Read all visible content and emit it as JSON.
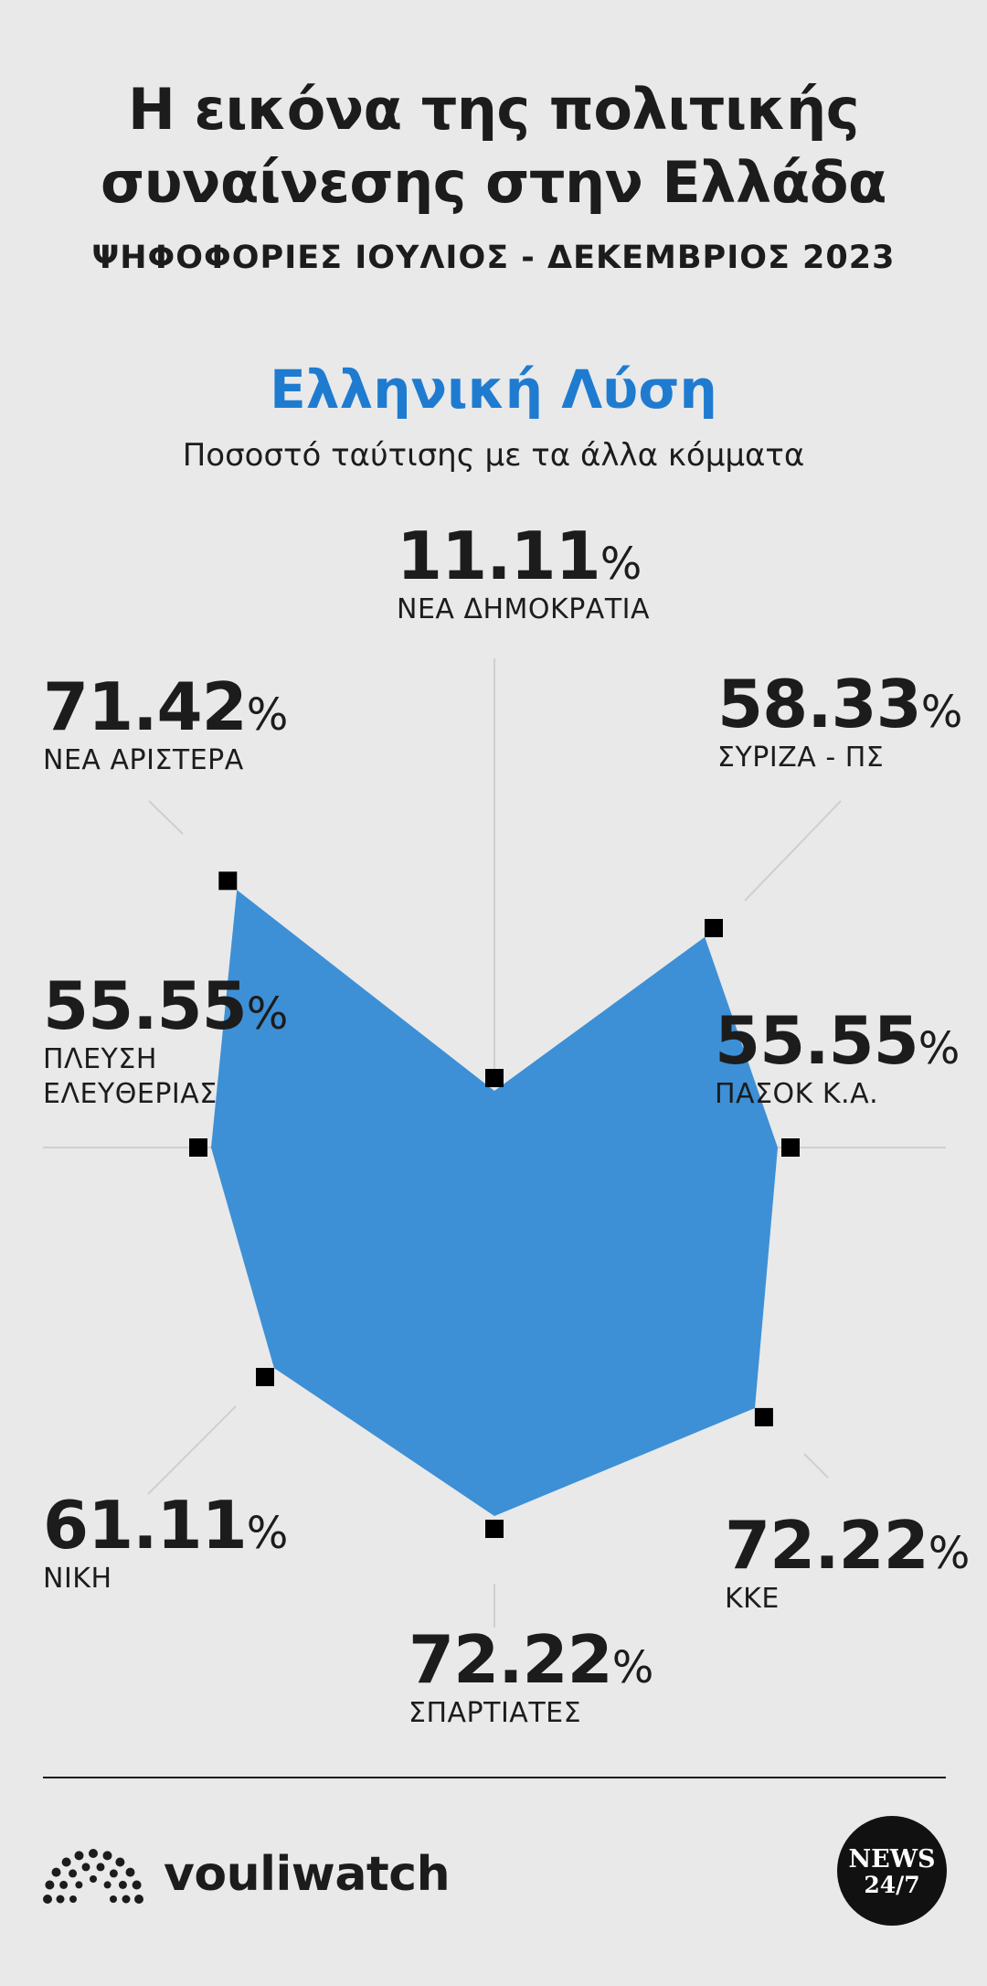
{
  "header": {
    "title_line1": "Η εικόνα της πολιτικής",
    "title_line2": "συναίνεσης στην Ελλάδα",
    "subtitle": "ΨΗΦΟΦΟΡΙΕΣ ΙΟΥΛΙΟΣ - ΔΕΚΕΜΒΡΙΟΣ 2023"
  },
  "chart_data": {
    "type": "radar",
    "title": "Ελληνική Λύση",
    "subtitle": "Ποσοστό ταύτισης με τα άλλα κόμματα",
    "percent_symbol": "%",
    "axis_max": 100,
    "fill_color": "#3d90d6",
    "categories": [
      "ΝΕΑ ΔΗΜΟΚΡΑΤΙΑ",
      "ΣΥΡΙΖΑ - ΠΣ",
      "ΠΑΣΟΚ Κ.Α.",
      "ΚΚΕ",
      "ΣΠΑΡΤΙΑΤΕΣ",
      "ΝΙΚΗ",
      "ΠΛΕΥΣΗ ΕΛΕΥΘΕΡΙΑΣ",
      "ΝΕΑ ΑΡΙΣΤΕΡΑ"
    ],
    "value_labels": [
      "11.11",
      "58.33",
      "55.55",
      "72.22",
      "72.22",
      "61.11",
      "55.55",
      "71.42"
    ],
    "values": [
      11.11,
      58.33,
      55.55,
      72.22,
      72.22,
      61.11,
      55.55,
      71.42
    ],
    "name_lines": {
      "ΠΛΕΥΣΗ ΕΛΕΥΘΕΡΙΑΣ": [
        "ΠΛΕΥΣΗ",
        "ΕΛΕΥΘΕΡΙΑΣ"
      ]
    }
  },
  "footer": {
    "logo_text": "vouliwatch",
    "badge_top": "NEWS",
    "badge_bottom": "24/7"
  }
}
